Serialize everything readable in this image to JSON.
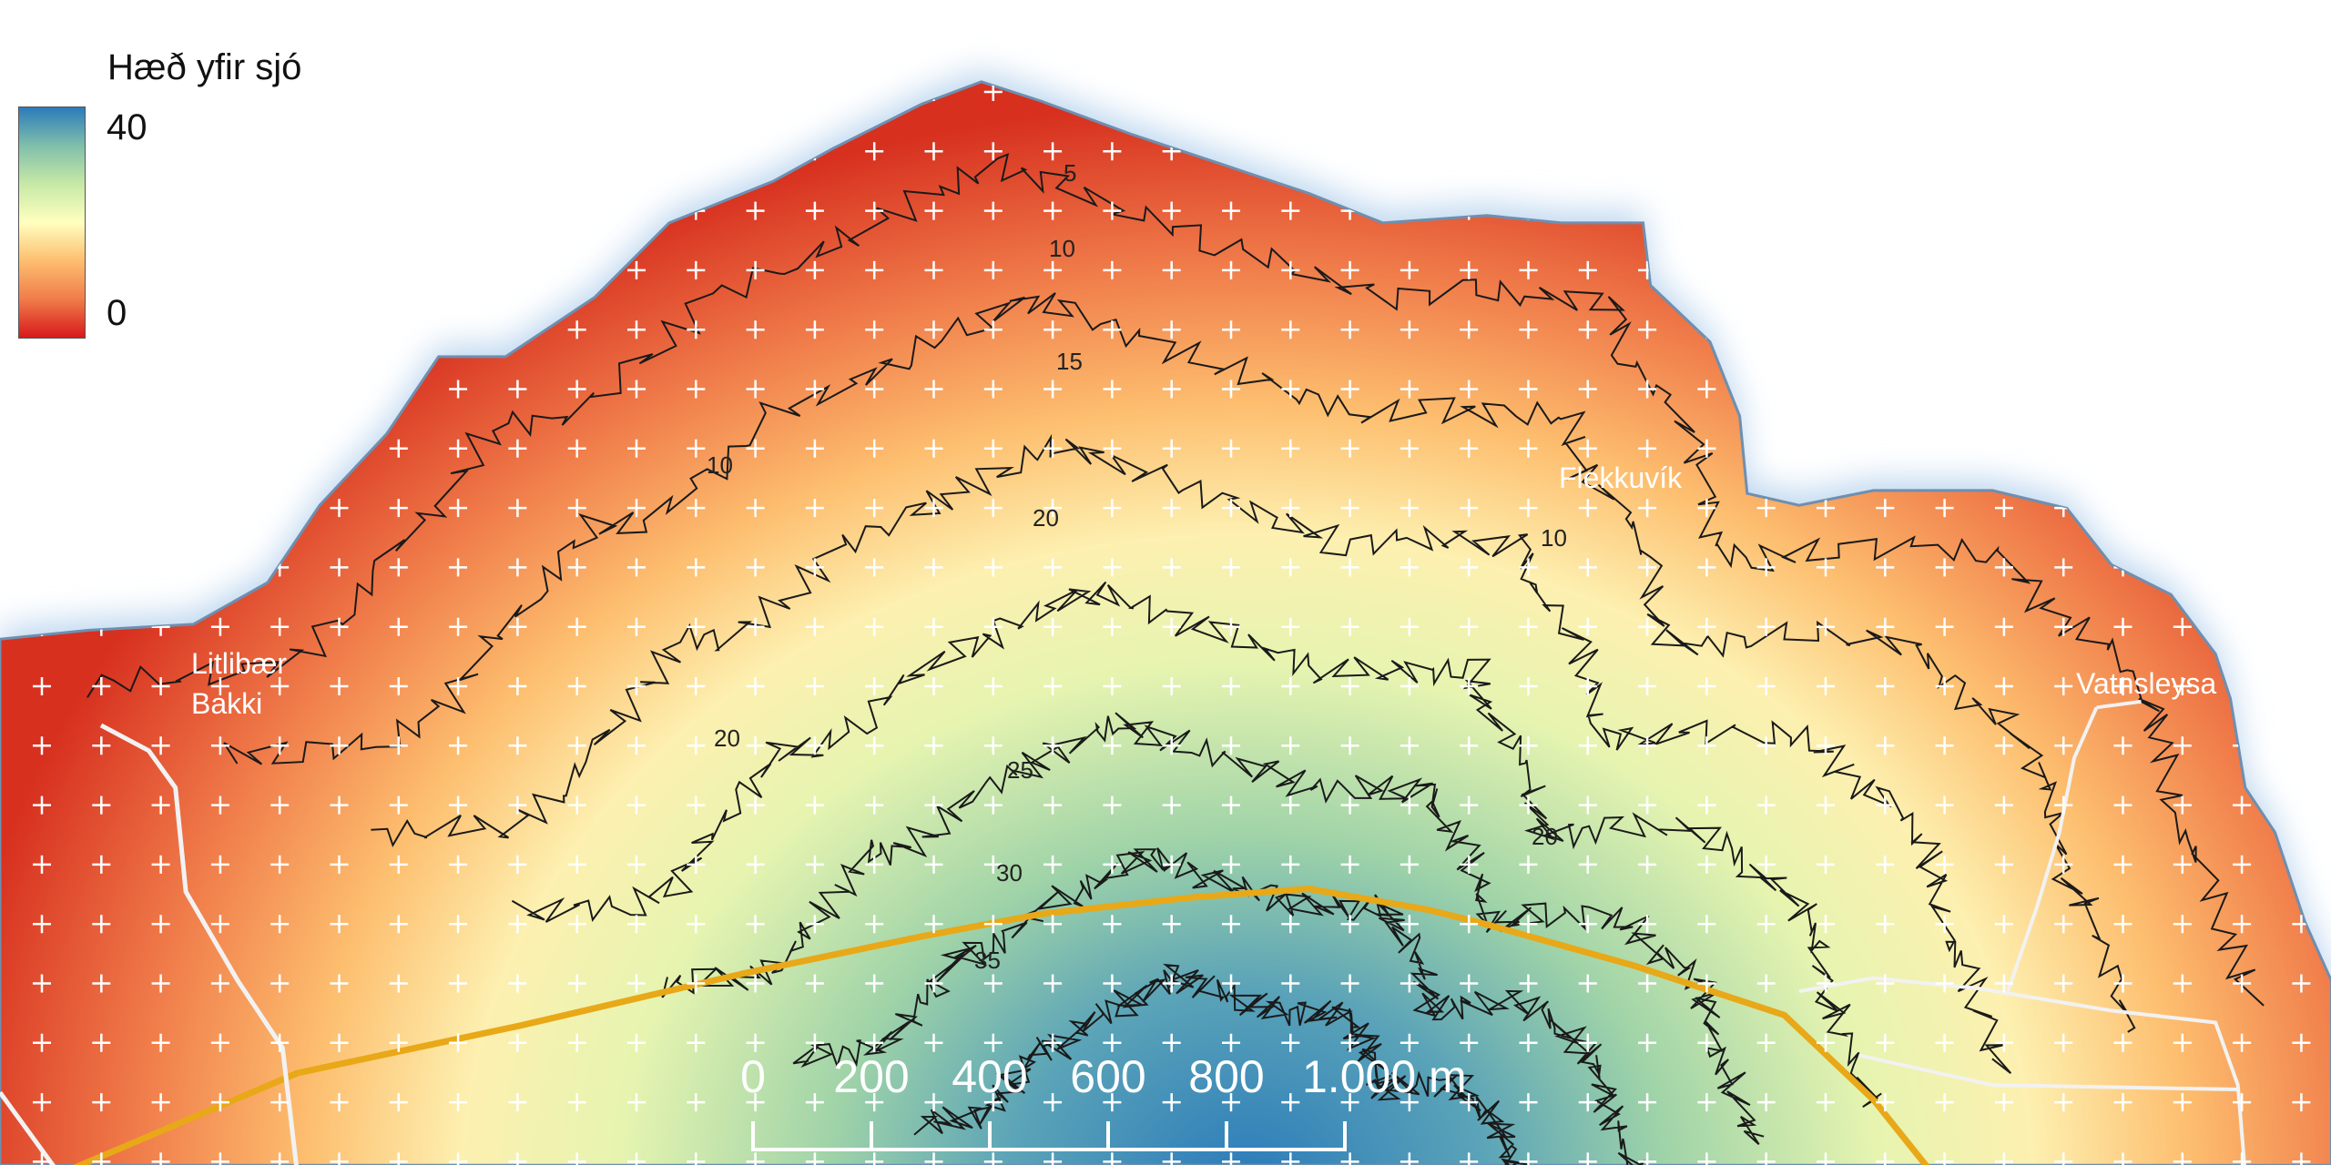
{
  "legend": {
    "title": "Hæð yfir sjó",
    "max_label": "40",
    "min_label": "0",
    "colors": [
      "#2b7bba",
      "#80bfab",
      "#c7e9a6",
      "#ffffbf",
      "#fdbe6f",
      "#f07c4a",
      "#d7191c"
    ]
  },
  "places": [
    "Litlibær",
    "Bakki",
    "Flekkuvík",
    "Vatnsleysa"
  ],
  "contour_labels": [
    "5",
    "10",
    "15",
    "10",
    "20",
    "10",
    "20",
    "25",
    "30",
    "35",
    "20"
  ],
  "scale_bar": {
    "labels": [
      "0",
      "200",
      "400",
      "600",
      "800",
      "1.000 m"
    ]
  },
  "colors": {
    "sea_halo": "#bcd6ef",
    "main_road": "#e8a818",
    "minor_road": "#f2f2f2",
    "contour": "#1a1a1a",
    "grid_cross": "#ffffff"
  }
}
